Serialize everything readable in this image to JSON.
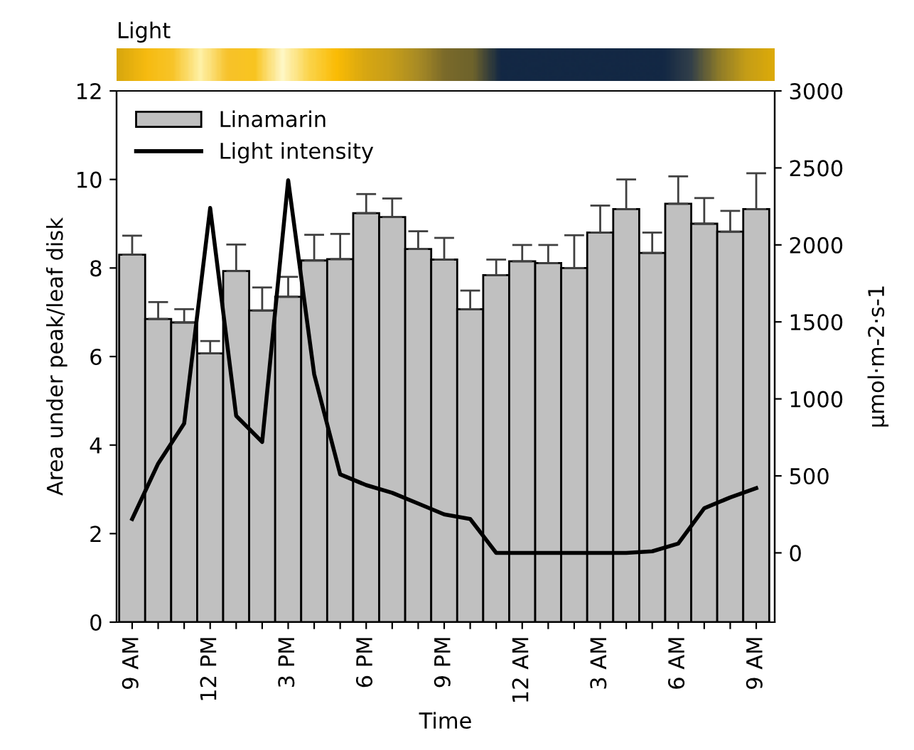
{
  "chart_data": {
    "type": "bar",
    "xlabel": "Time",
    "ylabel": "Area under peak/leaf disk",
    "y2label": "µmol·m-2·s-1",
    "annotations": [
      "Light"
    ],
    "categories": [
      "9 AM",
      null,
      null,
      "12 PM",
      null,
      null,
      "3 PM",
      null,
      null,
      "6 PM",
      null,
      null,
      "9 PM",
      null,
      null,
      "12 AM",
      null,
      null,
      "3 AM",
      null,
      null,
      "6 AM",
      null,
      null,
      "9 AM"
    ],
    "series": [
      {
        "name": "Linamarin",
        "color": "#c0c0c0",
        "values": [
          8.3,
          6.85,
          6.77,
          6.07,
          7.93,
          7.04,
          7.35,
          8.17,
          8.2,
          9.24,
          9.15,
          8.43,
          8.19,
          7.07,
          7.84,
          8.15,
          8.11,
          8.0,
          8.8,
          9.33,
          8.34,
          9.45,
          9.0,
          8.82,
          9.33
        ],
        "errors": [
          [
            8.3,
            8.73
          ],
          [
            6.85,
            7.23
          ],
          [
            6.77,
            7.07
          ],
          [
            6.07,
            6.35
          ],
          [
            7.93,
            8.53
          ],
          [
            7.04,
            7.56
          ],
          [
            7.35,
            7.8
          ],
          [
            8.17,
            8.75
          ],
          [
            8.2,
            8.77
          ],
          [
            9.24,
            9.67
          ],
          [
            9.15,
            9.57
          ],
          [
            8.43,
            8.83
          ],
          [
            8.19,
            8.68
          ],
          [
            7.07,
            7.49
          ],
          [
            7.84,
            8.19
          ],
          [
            8.15,
            8.52
          ],
          [
            8.11,
            8.52
          ],
          [
            8.0,
            8.74
          ],
          [
            8.8,
            9.41
          ],
          [
            9.33,
            10.0
          ],
          [
            8.34,
            8.8
          ],
          [
            9.45,
            10.07
          ],
          [
            9.0,
            9.58
          ],
          [
            8.82,
            9.29
          ],
          [
            9.33,
            10.14
          ]
        ]
      },
      {
        "name": "Light intensity",
        "type": "line",
        "color": "#000000",
        "axis": "y2",
        "values": [
          220,
          580,
          840,
          2240,
          890,
          720,
          2420,
          1160,
          510,
          440,
          390,
          320,
          250,
          220,
          0,
          0,
          0,
          0,
          0,
          0,
          10,
          60,
          290,
          360,
          420
        ]
      }
    ],
    "ylim": [
      0,
      12
    ],
    "yticks": [
      0,
      2,
      4,
      6,
      8,
      10,
      12
    ],
    "y2lim": [
      -450,
      3000
    ],
    "y2ticks": [
      0,
      500,
      1000,
      1500,
      2000,
      2500,
      3000
    ],
    "legend": "top left",
    "grid": false,
    "marker": "none",
    "line_style": "solid"
  }
}
